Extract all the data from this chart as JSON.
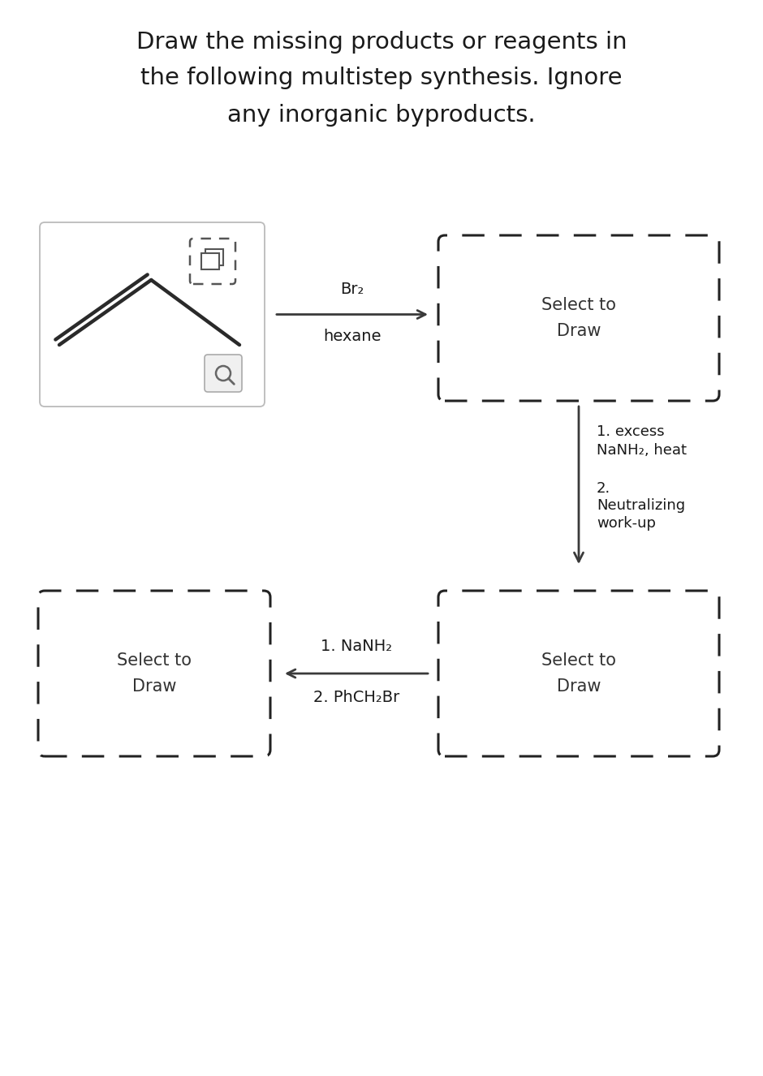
{
  "title_line1": "Draw the missing products or reagents in",
  "title_line2": "the following multistep synthesis. Ignore",
  "title_line3": "any inorganic byproducts.",
  "title_fontsize": 21,
  "bg_color": "#ffffff",
  "text_color": "#1a1a1a",
  "reagent1_line1": "Br₂",
  "reagent1_line2": "hexane",
  "reagent2_line1": "1. excess",
  "reagent2_line2": "NaNH₂, heat",
  "reagent2_line3": "2.",
  "reagent2_line4": "Neutralizing",
  "reagent2_line5": "work-up",
  "reagent3_line1": "1. NaNH₂",
  "reagent3_line2": "2. PhCH₂Br",
  "select_draw_text": "Select to\nDraw",
  "dashed_box_color": "#222222",
  "arrow_color": "#3a3a3a",
  "mol_box_color": "#aaaaaa",
  "label_fontsize": 13,
  "select_fontsize": 15
}
